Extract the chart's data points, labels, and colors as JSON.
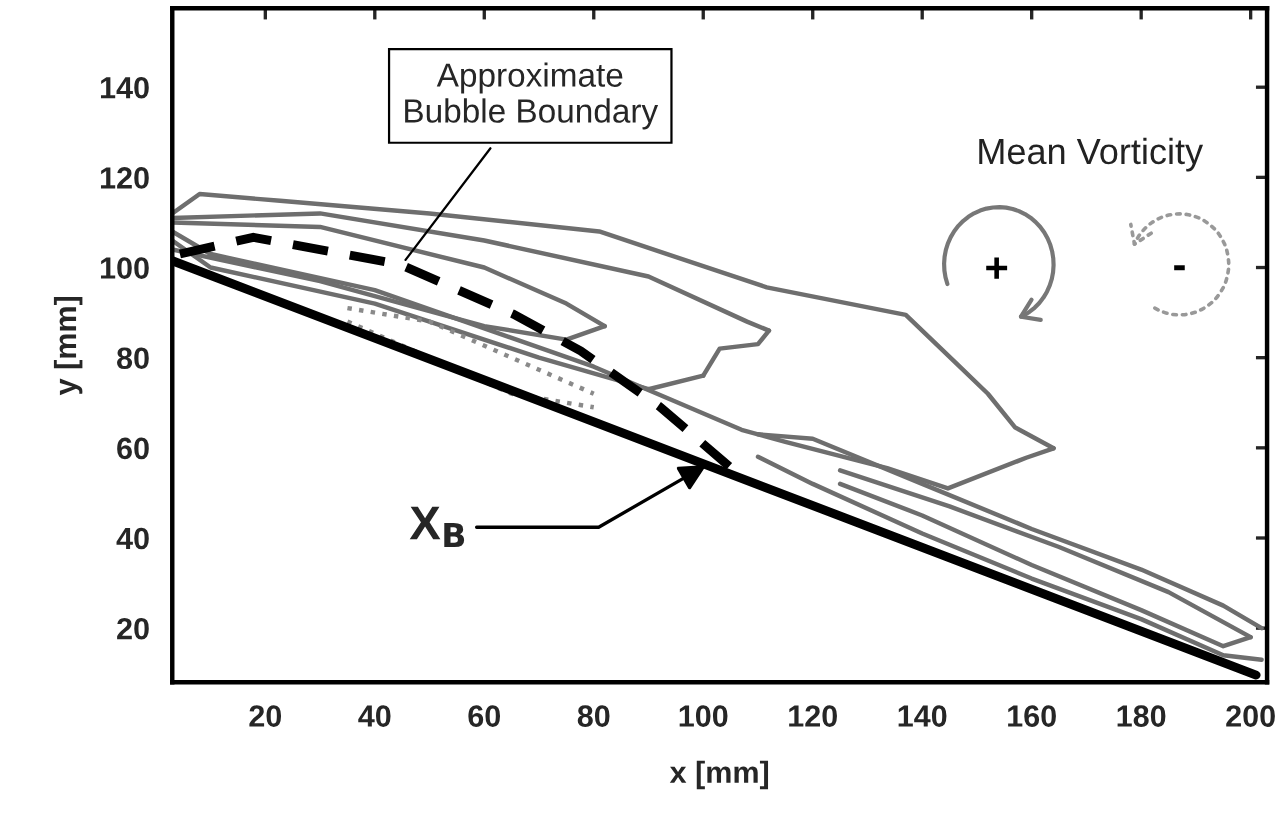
{
  "chart_data": {
    "type": "line",
    "xlabel": "x [mm]",
    "ylabel": "y [mm]",
    "xlim": [
      3,
      203
    ],
    "ylim": [
      8,
      157.5
    ],
    "xticks": [
      20,
      40,
      60,
      80,
      100,
      120,
      140,
      160,
      180,
      200
    ],
    "yticks": [
      20,
      40,
      60,
      80,
      100,
      120,
      140
    ],
    "grid": false,
    "legend": false,
    "marker": "none",
    "series": [
      {
        "color": "#6e6e6e",
        "line_style": "solid",
        "x": [
          3,
          8,
          22.7,
          50,
          81,
          111.6,
          137,
          146,
          152,
          157,
          164
        ],
        "values": [
          112,
          116.3,
          114.8,
          112,
          108,
          95.6,
          89.5,
          79,
          72,
          64.5,
          59.9
        ]
      },
      {
        "color": "#6e6e6e",
        "line_style": "solid",
        "x": [
          3,
          10,
          40,
          80,
          107,
          115,
          133.6,
          144.7,
          159,
          164
        ],
        "values": [
          108,
          103,
          95,
          78,
          64,
          61.3,
          55.5,
          51,
          57.8,
          59.9
        ]
      },
      {
        "color": "#6e6e6e",
        "line_style": "solid",
        "x": [
          3,
          30,
          60,
          75,
          82
        ],
        "values": [
          110,
          109,
          100,
          92,
          87
        ]
      },
      {
        "color": "#6e6e6e",
        "line_style": "solid",
        "x": [
          3,
          30,
          60,
          75,
          82
        ],
        "values": [
          104,
          97,
          87,
          84,
          87
        ]
      },
      {
        "color": "#6e6e6e",
        "line_style": "solid",
        "x": [
          3,
          30,
          60,
          90,
          108,
          112
        ],
        "values": [
          111,
          112,
          106,
          98,
          88,
          86
        ]
      },
      {
        "color": "#6e6e6e",
        "line_style": "solid",
        "x": [
          100,
          103,
          110,
          112
        ],
        "values": [
          76,
          82,
          83,
          86
        ]
      },
      {
        "color": "#6e6e6e",
        "line_style": "solid",
        "x": [
          3,
          10,
          40,
          70,
          90,
          100
        ],
        "values": [
          106,
          100,
          92,
          80,
          73,
          76
        ]
      },
      {
        "color": "#6e6e6e",
        "line_style": "solid",
        "x": [
          110,
          120,
          140,
          160,
          180,
          195,
          202
        ],
        "values": [
          63,
          62,
          52,
          42,
          33,
          25,
          20
        ]
      },
      {
        "color": "#6e6e6e",
        "line_style": "solid",
        "x": [
          110,
          120,
          140,
          160,
          180,
          195,
          202
        ],
        "values": [
          58,
          52,
          41,
          31,
          22,
          14,
          13
        ]
      },
      {
        "color": "#6e6e6e",
        "line_style": "solid",
        "x": [
          125,
          145,
          165,
          185,
          200
        ],
        "values": [
          55,
          47,
          38,
          28,
          18
        ]
      },
      {
        "color": "#6e6e6e",
        "line_style": "solid",
        "x": [
          125,
          140,
          160,
          180,
          195,
          200
        ],
        "values": [
          52,
          45,
          34,
          24,
          16,
          18
        ]
      },
      {
        "color": "#8a8a8a",
        "line_style": "dotted",
        "x": [
          35,
          50,
          65,
          80
        ],
        "values": [
          91,
          88,
          80,
          72
        ]
      },
      {
        "color": "#8a8a8a",
        "line_style": "dotted",
        "x": [
          35,
          50,
          65,
          80
        ],
        "values": [
          88,
          80,
          72,
          69
        ]
      },
      {
        "color": "#000000",
        "line_style": "dashed",
        "x": [
          4.4,
          17.8,
          44.6,
          65.4,
          77.6,
          92.2,
          105
        ],
        "values": [
          103,
          106.7,
          100.7,
          89.6,
          81.5,
          69,
          55.6
        ]
      },
      {
        "color": "#000000",
        "line_style": "solid",
        "x": [
          3,
          201
        ],
        "values": [
          101.5,
          9.6
        ]
      }
    ],
    "annotations": [
      {
        "text": "Approximate\nBubble Boundary",
        "x": 45,
        "y": 100.7
      },
      {
        "text": "X$_{B}$",
        "x": 100.6,
        "y": 56.2
      },
      "Mean Vorticity",
      "+",
      "-"
    ]
  }
}
